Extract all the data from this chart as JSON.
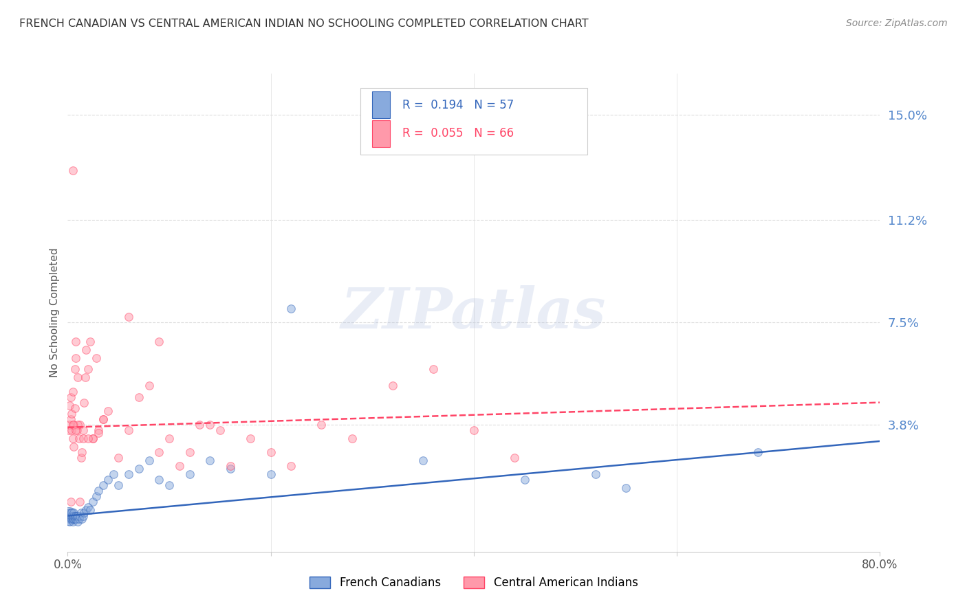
{
  "title": "FRENCH CANADIAN VS CENTRAL AMERICAN INDIAN NO SCHOOLING COMPLETED CORRELATION CHART",
  "source": "Source: ZipAtlas.com",
  "ylabel": "No Schooling Completed",
  "yticks": [
    0.0,
    0.038,
    0.075,
    0.112,
    0.15
  ],
  "ytick_labels": [
    "",
    "3.8%",
    "7.5%",
    "11.2%",
    "15.0%"
  ],
  "xlim": [
    0.0,
    0.8
  ],
  "ylim": [
    -0.008,
    0.165
  ],
  "series1_color": "#88AADD",
  "series2_color": "#FF99AA",
  "trendline1_color": "#3366BB",
  "trendline2_color": "#FF4466",
  "watermark": "ZIPatlas",
  "series1_label": "French Canadians",
  "series2_label": "Central American Indians",
  "blue_points_x": [
    0.001,
    0.001,
    0.002,
    0.002,
    0.002,
    0.003,
    0.003,
    0.003,
    0.004,
    0.004,
    0.004,
    0.005,
    0.005,
    0.005,
    0.006,
    0.006,
    0.006,
    0.007,
    0.007,
    0.008,
    0.008,
    0.009,
    0.009,
    0.01,
    0.01,
    0.011,
    0.012,
    0.013,
    0.014,
    0.015,
    0.016,
    0.018,
    0.02,
    0.022,
    0.025,
    0.028,
    0.03,
    0.035,
    0.04,
    0.045,
    0.05,
    0.06,
    0.07,
    0.08,
    0.09,
    0.1,
    0.12,
    0.14,
    0.16,
    0.2,
    0.22,
    0.35,
    0.45,
    0.52,
    0.55,
    0.68
  ],
  "blue_points_y": [
    0.004,
    0.005,
    0.003,
    0.005,
    0.006,
    0.004,
    0.005,
    0.006,
    0.004,
    0.005,
    0.006,
    0.003,
    0.004,
    0.005,
    0.004,
    0.005,
    0.006,
    0.004,
    0.005,
    0.004,
    0.005,
    0.004,
    0.005,
    0.003,
    0.005,
    0.004,
    0.005,
    0.006,
    0.004,
    0.005,
    0.006,
    0.007,
    0.008,
    0.007,
    0.01,
    0.012,
    0.014,
    0.016,
    0.018,
    0.02,
    0.016,
    0.02,
    0.022,
    0.025,
    0.018,
    0.016,
    0.02,
    0.025,
    0.022,
    0.02,
    0.08,
    0.025,
    0.018,
    0.02,
    0.015,
    0.028
  ],
  "blue_sizes_large": [
    300
  ],
  "blue_large_x": [
    0.001
  ],
  "blue_large_y": [
    0.005
  ],
  "pink_points_x": [
    0.001,
    0.002,
    0.002,
    0.003,
    0.003,
    0.004,
    0.004,
    0.005,
    0.005,
    0.006,
    0.006,
    0.007,
    0.007,
    0.008,
    0.008,
    0.009,
    0.01,
    0.011,
    0.012,
    0.013,
    0.014,
    0.015,
    0.016,
    0.017,
    0.018,
    0.02,
    0.022,
    0.025,
    0.028,
    0.03,
    0.035,
    0.04,
    0.05,
    0.06,
    0.07,
    0.08,
    0.09,
    0.1,
    0.11,
    0.12,
    0.13,
    0.14,
    0.15,
    0.16,
    0.18,
    0.2,
    0.22,
    0.25,
    0.28,
    0.32,
    0.36,
    0.4,
    0.44,
    0.01,
    0.015,
    0.025,
    0.035,
    0.005,
    0.008,
    0.02,
    0.03,
    0.06,
    0.09,
    0.005,
    0.012,
    0.003
  ],
  "pink_points_y": [
    0.036,
    0.038,
    0.045,
    0.04,
    0.048,
    0.036,
    0.042,
    0.033,
    0.05,
    0.03,
    0.038,
    0.044,
    0.058,
    0.062,
    0.068,
    0.036,
    0.055,
    0.033,
    0.038,
    0.026,
    0.028,
    0.036,
    0.046,
    0.055,
    0.065,
    0.058,
    0.068,
    0.033,
    0.062,
    0.036,
    0.04,
    0.043,
    0.026,
    0.036,
    0.048,
    0.052,
    0.028,
    0.033,
    0.023,
    0.028,
    0.038,
    0.038,
    0.036,
    0.023,
    0.033,
    0.028,
    0.023,
    0.038,
    0.033,
    0.052,
    0.058,
    0.036,
    0.026,
    0.038,
    0.033,
    0.033,
    0.04,
    0.038,
    0.036,
    0.033,
    0.035,
    0.077,
    0.068,
    0.13,
    0.01,
    0.01
  ],
  "blue_trend_x": [
    0.0,
    0.8
  ],
  "blue_trend_y": [
    0.005,
    0.032
  ],
  "pink_trend_x": [
    0.0,
    0.8
  ],
  "pink_trend_y": [
    0.037,
    0.046
  ],
  "grid_color": "#DDDDDD",
  "background_color": "#FFFFFF",
  "title_color": "#333333",
  "axis_label_color": "#555555",
  "ytick_color": "#5588CC",
  "xtick_color": "#555555"
}
